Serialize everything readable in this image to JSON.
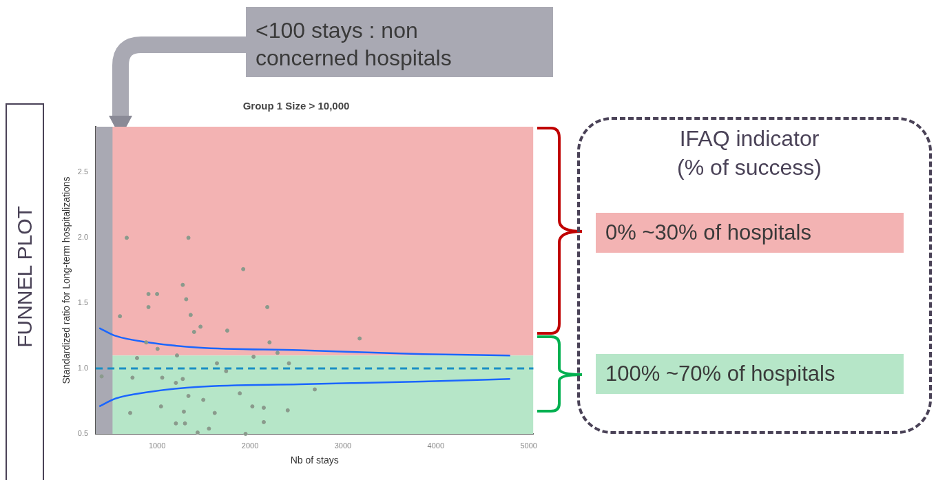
{
  "chart_data": {
    "type": "scatter",
    "title": "Group 1 Size > 10,000",
    "xlabel": "Nb of stays",
    "ylabel": "Standardized ratio for Long-term hospitalizations",
    "xlim": [
      340,
      5050
    ],
    "ylim": [
      0.5,
      2.85
    ],
    "xticks": [
      1000,
      2000,
      3000,
      4000,
      5000
    ],
    "yticks": [
      {
        "value": 0.5,
        "label": "0.5"
      },
      {
        "value": 1,
        "label": "1.0"
      },
      {
        "value": 1.5,
        "label": "1.5"
      },
      {
        "value": 2,
        "label": "2.0"
      },
      {
        "value": 2.5,
        "label": "2.5"
      }
    ],
    "grid": false,
    "legend": false,
    "marker": "circle",
    "series": [
      {
        "type": "scatter",
        "color": "#8a9a8c",
        "x": [
          673,
          1337,
          1927,
          1276,
          907,
          1000,
          1313,
          907,
          2186,
          600,
          1361,
          1467,
          1398,
          1755,
          2210,
          882,
          1005,
          1214,
          784,
          2038,
          1644,
          1743,
          735,
          1276,
          1055,
          1202,
          1890,
          1497,
          1042,
          1337,
          2025,
          2148,
          710,
          1620,
          1288,
          2148,
          1202,
          1300,
          1558,
          1436,
          1952,
          2406,
          2296,
          3180,
          2697,
          2419,
          403
        ],
        "values": [
          2.0,
          2.0,
          1.76,
          1.64,
          1.57,
          1.57,
          1.53,
          1.47,
          1.47,
          1.4,
          1.41,
          1.32,
          1.28,
          1.29,
          1.2,
          1.2,
          1.15,
          1.1,
          1.08,
          1.09,
          1.04,
          0.98,
          0.93,
          0.92,
          0.93,
          0.89,
          0.81,
          0.76,
          0.71,
          0.79,
          0.71,
          0.7,
          0.66,
          0.66,
          0.67,
          0.59,
          0.58,
          0.58,
          0.54,
          0.51,
          0.5,
          0.68,
          1.12,
          1.23,
          0.84,
          1.04,
          0.94
        ]
      },
      {
        "type": "line",
        "color": "#1a66ff",
        "marker": "none",
        "x": [
          378,
          551,
          907,
          1447,
          2530,
          3857,
          4800
        ],
        "values": [
          1.31,
          1.25,
          1.2,
          1.16,
          1.14,
          1.11,
          1.1
        ]
      },
      {
        "type": "line",
        "color": "#1a66ff",
        "marker": "none",
        "x": [
          378,
          551,
          907,
          1447,
          2530,
          3857,
          4800
        ],
        "values": [
          0.71,
          0.77,
          0.82,
          0.86,
          0.88,
          0.9,
          0.92
        ]
      }
    ],
    "ref_lines": [
      {
        "axis": "y",
        "value": 1,
        "color": "#1a8fc4",
        "line_style": "dashed"
      }
    ],
    "bands": [
      {
        "axis": "y",
        "from": 1.1,
        "to": 2.85,
        "color": "#f3b3b3"
      },
      {
        "axis": "y",
        "from": 0.5,
        "to": 1.1,
        "color": "#b6e6c8"
      },
      {
        "axis": "x",
        "from": 340,
        "to": 520,
        "color": "#a9a9b3"
      }
    ],
    "annotations": [
      "FUNNEL PLOT",
      "IFAQ indicator (% of success)",
      "<100 stays : non concerned hospitals",
      "0% ~30% of hospitals",
      "100% ~70% of hospitals"
    ]
  }
}
